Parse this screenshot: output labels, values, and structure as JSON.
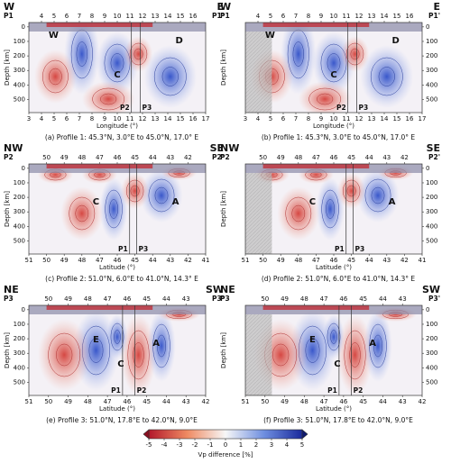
{
  "panels": [
    {
      "corner_left": "W",
      "corner_right": "E",
      "profile_left": "P1",
      "profile_right": "P1'",
      "xlim": [
        3,
        17
      ],
      "top_ticks": [
        4,
        5,
        6,
        7,
        8,
        9,
        10,
        11,
        12,
        13,
        14,
        15,
        16
      ],
      "bottom_ticks": [
        3,
        4,
        5,
        6,
        7,
        8,
        9,
        10,
        11,
        12,
        13,
        14,
        15,
        16,
        17
      ],
      "ylim": [
        -30,
        590
      ],
      "y_ticks": [
        0,
        100,
        200,
        300,
        400,
        500
      ],
      "y_label": "Depth [km]",
      "x_label": "Longitude (°)",
      "caption": "(a) Profile 1: 45.3°N, 3.0°E to 45.0°N, 17.0° E",
      "features": [
        "W",
        "C",
        "D"
      ],
      "markers": [
        "P2",
        "P3"
      ]
    },
    {
      "corner_left": "W",
      "corner_right": "E",
      "profile_left": "P1",
      "profile_right": "P1'",
      "xlim": [
        3,
        17
      ],
      "top_ticks": [
        4,
        5,
        6,
        7,
        8,
        9,
        10,
        11,
        12,
        13,
        14,
        15,
        16
      ],
      "bottom_ticks": [
        3,
        4,
        5,
        6,
        7,
        8,
        9,
        10,
        11,
        12,
        13,
        14,
        15,
        16,
        17
      ],
      "ylim": [
        -30,
        590
      ],
      "y_ticks": [
        0,
        100,
        200,
        300,
        400,
        500
      ],
      "y_label": "Depth [km]",
      "x_label": "Longitude (°)",
      "caption": "(b) Profile 1: 45.3°N, 3.0°E to 45.0°N, 17.0° E",
      "features": [
        "W",
        "C",
        "D"
      ],
      "markers": [
        "P2",
        "P3"
      ]
    },
    {
      "corner_left": "NW",
      "corner_right": "SE",
      "profile_left": "P2",
      "profile_right": "P2'",
      "xlim": [
        51,
        41
      ],
      "top_ticks": [
        50,
        49,
        48,
        47,
        46,
        45,
        44,
        43,
        42
      ],
      "bottom_ticks": [
        51,
        50,
        49,
        48,
        47,
        46,
        45,
        44,
        43,
        42,
        41
      ],
      "ylim": [
        -30,
        590
      ],
      "y_ticks": [
        0,
        100,
        200,
        300,
        400,
        500
      ],
      "y_label": "Depth [km]",
      "x_label": "Latitude (°)",
      "caption": "(c) Profile 2: 51.0°N, 6.0°E to 41.0°N, 14.3° E",
      "features": [
        "C",
        "A"
      ],
      "markers": [
        "P1",
        "P3"
      ]
    },
    {
      "corner_left": "NW",
      "corner_right": "SE",
      "profile_left": "P2",
      "profile_right": "P2'",
      "xlim": [
        51,
        41
      ],
      "top_ticks": [
        50,
        49,
        48,
        47,
        46,
        45,
        44,
        43,
        42
      ],
      "bottom_ticks": [
        51,
        50,
        49,
        48,
        47,
        46,
        45,
        44,
        43,
        42,
        41
      ],
      "ylim": [
        -30,
        590
      ],
      "y_ticks": [
        0,
        100,
        200,
        300,
        400,
        500
      ],
      "y_label": "Depth [km]",
      "x_label": "Latitude (°)",
      "caption": "(d) Profile 2: 51.0°N, 6.0°E to 41.0°N, 14.3° E",
      "features": [
        "C",
        "A"
      ],
      "markers": [
        "P1",
        "P3"
      ]
    },
    {
      "corner_left": "NE",
      "corner_right": "SW",
      "profile_left": "P3",
      "profile_right": "P3'",
      "xlim": [
        51,
        42
      ],
      "top_ticks": [
        50,
        49,
        48,
        47,
        46,
        45,
        44,
        43
      ],
      "bottom_ticks": [
        51,
        50,
        49,
        48,
        47,
        46,
        45,
        44,
        43,
        42
      ],
      "ylim": [
        -30,
        590
      ],
      "y_ticks": [
        0,
        100,
        200,
        300,
        400,
        500
      ],
      "y_label": "Depth [km]",
      "x_label": "Latitude (°)",
      "caption": "(e) Profile 3: 51.0°N, 17.8°E to 42.0°N, 9.0°E",
      "features": [
        "E",
        "C",
        "A"
      ],
      "markers": [
        "P1",
        "P2"
      ]
    },
    {
      "corner_left": "NE",
      "corner_right": "SW",
      "profile_left": "P3",
      "profile_right": "P3'",
      "xlim": [
        51,
        42
      ],
      "top_ticks": [
        50,
        49,
        48,
        47,
        46,
        45,
        44,
        43
      ],
      "bottom_ticks": [
        51,
        50,
        49,
        48,
        47,
        46,
        45,
        44,
        43,
        42
      ],
      "ylim": [
        -30,
        590
      ],
      "y_ticks": [
        0,
        100,
        200,
        300,
        400,
        500
      ],
      "y_label": "Depth [km]",
      "x_label": "Latitude (°)",
      "caption": "(f) Profile 3: 51.0°N, 17.8°E to 42.0°N, 9.0°E",
      "features": [
        "E",
        "C",
        "A"
      ],
      "markers": [
        "P1",
        "P2"
      ]
    }
  ],
  "colorbar": {
    "clim": [
      -5,
      5
    ],
    "ticks": [
      -5,
      -4,
      -3,
      -2,
      -1,
      0,
      1,
      2,
      3,
      4,
      5
    ],
    "label": "Vp difference [%]"
  }
}
